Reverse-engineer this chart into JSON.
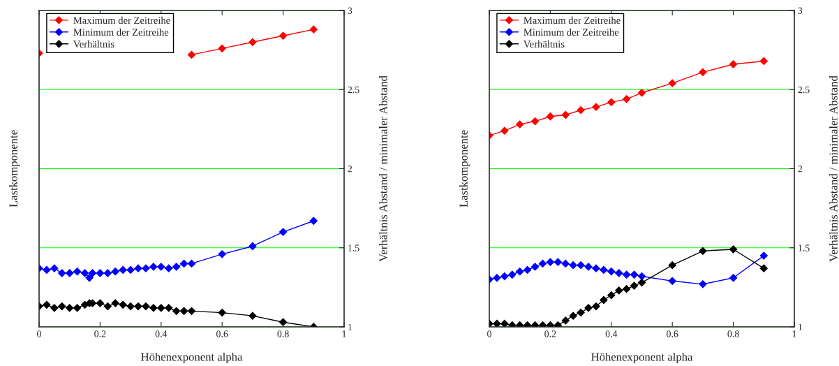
{
  "chart_data": [
    {
      "type": "line",
      "xlabel": "Höhenexponent alpha",
      "ylabel": "Lastkomponente",
      "y2label": "Verhältnis Abstand / minimaler Abstand",
      "x": [
        0,
        0.025,
        0.05,
        0.075,
        0.1,
        0.125,
        0.15,
        0.165,
        0.175,
        0.2,
        0.225,
        0.25,
        0.275,
        0.3,
        0.325,
        0.35,
        0.375,
        0.4,
        0.425,
        0.45,
        0.475,
        0.5,
        0.6,
        0.7,
        0.8,
        0.9
      ],
      "xlim": [
        0,
        1
      ],
      "xticks": [
        0,
        0.2,
        0.4,
        0.6,
        0.8,
        1
      ],
      "y2lim": [
        1,
        3
      ],
      "y2ticks": [
        1,
        1.5,
        2,
        2.5,
        3
      ],
      "grid": "y2",
      "legend": "top left",
      "marker": "diamond",
      "series": [
        {
          "name": "Maximum der Zeitreihe",
          "color": "#ff0000",
          "axis": "y2",
          "x": [
            0,
            0.25,
            0.5,
            0.6,
            0.7,
            0.8,
            0.9
          ],
          "values": [
            2.73,
            null,
            2.72,
            2.76,
            2.8,
            2.84,
            2.88
          ]
        },
        {
          "name": "Minimum der Zeitreihe",
          "color": "#0000ff",
          "axis": "y2",
          "values": [
            1.37,
            1.36,
            1.37,
            1.34,
            1.34,
            1.35,
            1.34,
            1.31,
            1.34,
            1.34,
            1.34,
            1.35,
            1.36,
            1.36,
            1.37,
            1.37,
            1.38,
            1.38,
            1.37,
            1.38,
            1.4,
            1.4,
            1.46,
            1.51,
            1.6,
            1.67
          ]
        },
        {
          "name": "Verhältnis",
          "color": "#000000",
          "axis": "y2",
          "values": [
            1.13,
            1.14,
            1.12,
            1.13,
            1.12,
            1.12,
            1.14,
            1.15,
            1.15,
            1.15,
            1.13,
            1.15,
            1.14,
            1.13,
            1.13,
            1.13,
            1.12,
            1.12,
            1.12,
            1.1,
            1.1,
            1.1,
            1.09,
            1.07,
            1.03,
            1.0
          ]
        }
      ]
    },
    {
      "type": "line",
      "xlabel": "Höhenexponent alpha",
      "ylabel": "Lastkomponente",
      "y2label": "Verhältnis Abstand / minimaler Abstand",
      "x": [
        0,
        0.025,
        0.05,
        0.075,
        0.1,
        0.125,
        0.15,
        0.175,
        0.2,
        0.225,
        0.25,
        0.275,
        0.3,
        0.325,
        0.35,
        0.375,
        0.4,
        0.425,
        0.45,
        0.475,
        0.5,
        0.6,
        0.7,
        0.8,
        0.9
      ],
      "xlim": [
        0,
        1
      ],
      "xticks": [
        0,
        0.2,
        0.4,
        0.6,
        0.8,
        1
      ],
      "y2lim": [
        1,
        3
      ],
      "y2ticks": [
        1,
        1.5,
        2,
        2.5,
        3
      ],
      "grid": "y2",
      "legend": "top left",
      "marker": "diamond",
      "series": [
        {
          "name": "Maximum der Zeitreihe",
          "color": "#ff0000",
          "axis": "y2",
          "x": [
            0,
            0.05,
            0.1,
            0.15,
            0.2,
            0.25,
            0.3,
            0.35,
            0.4,
            0.45,
            0.5,
            0.6,
            0.7,
            0.8,
            0.9
          ],
          "values": [
            2.21,
            2.24,
            2.28,
            2.3,
            2.33,
            2.34,
            2.37,
            2.39,
            2.42,
            2.44,
            2.48,
            2.54,
            2.61,
            2.66,
            2.68
          ]
        },
        {
          "name": "Minimum der Zeitreihe",
          "color": "#0000ff",
          "axis": "y2",
          "values": [
            1.3,
            1.31,
            1.32,
            1.33,
            1.35,
            1.36,
            1.38,
            1.4,
            1.41,
            1.41,
            1.4,
            1.39,
            1.39,
            1.38,
            1.37,
            1.36,
            1.35,
            1.34,
            1.33,
            1.33,
            1.32,
            1.29,
            1.27,
            1.31,
            1.45
          ]
        },
        {
          "name": "Verhältnis",
          "color": "#000000",
          "axis": "y2",
          "values": [
            1.02,
            1.02,
            1.02,
            1.01,
            1.01,
            1.01,
            1.01,
            1.01,
            1.01,
            1.01,
            1.04,
            1.07,
            1.09,
            1.12,
            1.13,
            1.17,
            1.2,
            1.23,
            1.24,
            1.26,
            1.28,
            1.39,
            1.48,
            1.49,
            1.37
          ]
        }
      ]
    }
  ]
}
